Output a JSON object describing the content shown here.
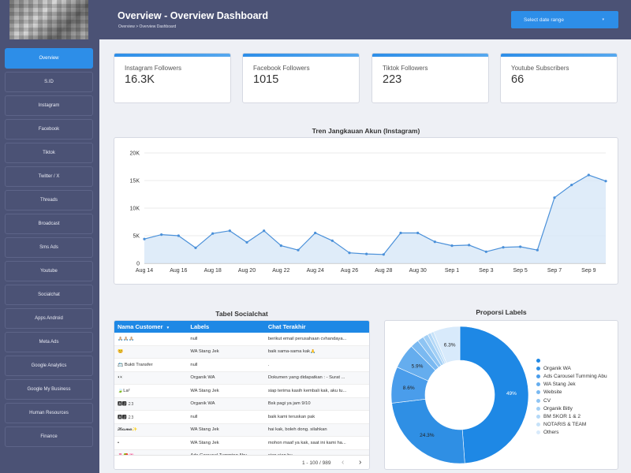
{
  "header": {
    "title": "Overview - Overview Dashboard",
    "breadcrumb": "Overview > Overview Dashboard",
    "date_range_label": "Select date range",
    "caret_icon": "▾"
  },
  "sidebar": {
    "items": [
      {
        "label": "Overview",
        "active": true
      },
      {
        "label": "S.ID"
      },
      {
        "label": "Instagram"
      },
      {
        "label": "Facebook"
      },
      {
        "label": "Tiktok"
      },
      {
        "label": "Twitter / X"
      },
      {
        "label": "Threads"
      },
      {
        "label": "Broadcast"
      },
      {
        "label": "Sms Ads"
      },
      {
        "label": "Youtube"
      },
      {
        "label": "Socialchat"
      },
      {
        "label": "Apps Android"
      },
      {
        "label": "Meta Ads"
      },
      {
        "label": "Google Analytics"
      },
      {
        "label": "Google My Business"
      },
      {
        "label": "Human Resources"
      },
      {
        "label": "Finance"
      }
    ]
  },
  "cards": [
    {
      "label": "Instagram Followers",
      "value": "16.3K"
    },
    {
      "label": "Facebook Followers",
      "value": "1015"
    },
    {
      "label": "Tiktok Followers",
      "value": "223"
    },
    {
      "label": "Youtube Subscribers",
      "value": "66"
    }
  ],
  "colors": {
    "accent": "#2d8ee8",
    "sidebar_bg": "#4b5275",
    "line": "#4a90d9"
  },
  "trend": {
    "title": "Tren Jangkauan Akun (Instagram)"
  },
  "table": {
    "title": "Tabel Socialchat",
    "headers": [
      "Nama Customer",
      "Labels",
      "Chat Terakhir"
    ],
    "sort_icon": "▾",
    "rows": [
      [
        "🙏🏼🙏🏼🙏🏼",
        "null",
        "berikut email perusahaan cvhandaya..."
      ],
      [
        "😊",
        "WA Stang Jek",
        "baik sama-sama kak🙏"
      ],
      [
        "📇 Bukti Transfer",
        "null",
        "."
      ],
      [
        "👀",
        "Organik WA",
        "Dokumen yang didapatkan : - Surat ..."
      ],
      [
        "🍃La²",
        "WA Stang Jek",
        "siap terima kasih kembali kak, aku tu..."
      ],
      [
        "🅰🅹 𝟸𝟹",
        "Organik WA",
        "Bsk pagi ya jam 9/10"
      ],
      [
        "🅰🅹 𝟸𝟹",
        "null",
        "baik kami teruskan pak"
      ],
      [
        "𝓡𝓲𝓼𝓶𝓪✨",
        "WA Stang Jek",
        "hai kak, boleh dong. silahkan"
      ],
      [
        "•",
        "WA Stang Jek",
        "mohon maaf ya kak, saat ini kami ha..."
      ],
      [
        "🌷🍓🌸...",
        "Ads Carousel Tumming Abu",
        "siap siap bu"
      ]
    ],
    "pagination": "1 - 100 / 989",
    "prev_icon": "‹",
    "next_icon": "›"
  },
  "donut": {
    "title": "Proporsi Labels"
  },
  "chart_data": [
    {
      "type": "area",
      "title": "Tren Jangkauan Akun (Instagram)",
      "xlabel": "",
      "ylabel": "",
      "x_tick_labels": [
        "Aug 14",
        "Aug 16",
        "Aug 18",
        "Aug 20",
        "Aug 22",
        "Aug 24",
        "Aug 26",
        "Aug 28",
        "Aug 30",
        "Sep 1",
        "Sep 3",
        "Sep 5",
        "Sep 7",
        "Sep 9"
      ],
      "y_tick_labels": [
        "0",
        "5K",
        "10K",
        "15K",
        "20K"
      ],
      "ylim": [
        0,
        20000
      ],
      "x": [
        "Aug 14",
        "Aug 15",
        "Aug 16",
        "Aug 17",
        "Aug 18",
        "Aug 19",
        "Aug 20",
        "Aug 21",
        "Aug 22",
        "Aug 23",
        "Aug 24",
        "Aug 25",
        "Aug 26",
        "Aug 27",
        "Aug 28",
        "Aug 29",
        "Aug 30",
        "Aug 31",
        "Sep 1",
        "Sep 2",
        "Sep 3",
        "Sep 4",
        "Sep 5",
        "Sep 6",
        "Sep 7",
        "Sep 8",
        "Sep 9",
        "Sep 10"
      ],
      "values": [
        4400,
        5200,
        5000,
        2800,
        5400,
        5900,
        3800,
        5900,
        3200,
        2400,
        5500,
        4100,
        1900,
        1700,
        1600,
        5500,
        5500,
        3900,
        3200,
        3300,
        2100,
        2900,
        3000,
        2400,
        11900,
        14200,
        16000,
        14900
      ],
      "grid": true
    },
    {
      "type": "pie",
      "title": "Proporsi Labels",
      "series": [
        {
          "label": "",
          "value": 49.0,
          "color": "#1e88e5"
        },
        {
          "label": "Organik WA",
          "value": 24.3,
          "color": "#2f8fe4"
        },
        {
          "label": "Ads Carousel Tumming Abu",
          "value": 8.6,
          "color": "#4a9deb"
        },
        {
          "label": "WA Stang Jek",
          "value": 5.9,
          "color": "#65adee"
        },
        {
          "label": "Website",
          "value": 2.0,
          "color": "#7ab9f1"
        },
        {
          "label": "CV",
          "value": 1.5,
          "color": "#8ec4f3"
        },
        {
          "label": "Organik Bitly",
          "value": 1.2,
          "color": "#a2cff5"
        },
        {
          "label": "BM SKOR 1 & 2",
          "value": 0.8,
          "color": "#b4d8f7"
        },
        {
          "label": "NOTARIS & TEAM",
          "value": 0.7,
          "color": "#c6e2f9"
        },
        {
          "label": "Others",
          "value": 6.3,
          "color": "#d8eafb"
        }
      ],
      "data_labels": [
        "49%",
        "24.3%",
        "8.6%",
        "5.9%",
        "6.3%"
      ],
      "legend_placement": "right"
    }
  ]
}
